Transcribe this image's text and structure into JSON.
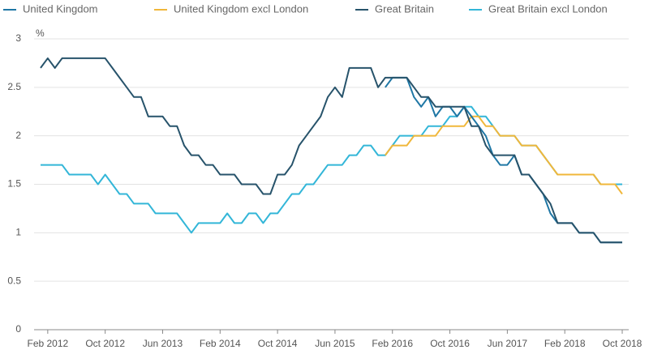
{
  "chart_data": {
    "type": "line",
    "y_label": "%",
    "categories": [
      null,
      "Feb 2012",
      null,
      null,
      null,
      null,
      null,
      null,
      null,
      "Oct 2012",
      null,
      null,
      null,
      null,
      null,
      null,
      null,
      "Jun 2013",
      null,
      null,
      null,
      null,
      null,
      null,
      null,
      "Feb 2014",
      null,
      null,
      null,
      null,
      null,
      null,
      null,
      "Oct 2014",
      null,
      null,
      null,
      null,
      null,
      null,
      null,
      "Jun 2015",
      null,
      null,
      null,
      null,
      null,
      null,
      null,
      "Feb 2016",
      null,
      null,
      null,
      null,
      null,
      null,
      null,
      "Oct 2016",
      null,
      null,
      null,
      null,
      null,
      null,
      null,
      "Jun 2017",
      null,
      null,
      null,
      null,
      null,
      null,
      null,
      "Feb 2018",
      null,
      null,
      null,
      null,
      null,
      null,
      null,
      "Oct 2018"
    ],
    "series": [
      {
        "name": "United Kingdom",
        "color": "#1f77a5",
        "values": [
          null,
          null,
          null,
          null,
          null,
          null,
          null,
          null,
          null,
          null,
          null,
          null,
          null,
          null,
          null,
          null,
          null,
          null,
          null,
          null,
          null,
          null,
          null,
          null,
          null,
          null,
          null,
          null,
          null,
          null,
          null,
          null,
          null,
          null,
          null,
          null,
          null,
          null,
          null,
          null,
          null,
          null,
          null,
          null,
          null,
          null,
          null,
          null,
          2.5,
          2.6,
          2.6,
          2.6,
          2.4,
          2.3,
          2.4,
          2.2,
          2.3,
          2.3,
          2.2,
          2.3,
          2.2,
          2.1,
          2.0,
          1.8,
          1.7,
          1.7,
          1.8,
          1.6,
          1.6,
          1.5,
          1.4,
          1.2,
          1.1,
          1.1,
          1.1,
          1.0,
          1.0,
          1.0,
          0.9,
          0.9,
          0.9,
          0.9
        ]
      },
      {
        "name": "United Kingdom excl London",
        "color": "#f0b73a",
        "values": [
          null,
          null,
          null,
          null,
          null,
          null,
          null,
          null,
          null,
          null,
          null,
          null,
          null,
          null,
          null,
          null,
          null,
          null,
          null,
          null,
          null,
          null,
          null,
          null,
          null,
          null,
          null,
          null,
          null,
          null,
          null,
          null,
          null,
          null,
          null,
          null,
          null,
          null,
          null,
          null,
          null,
          null,
          null,
          null,
          null,
          null,
          null,
          null,
          1.8,
          1.9,
          1.9,
          1.9,
          2.0,
          2.0,
          2.0,
          2.0,
          2.1,
          2.1,
          2.1,
          2.1,
          2.2,
          2.2,
          2.1,
          2.1,
          2.0,
          2.0,
          2.0,
          1.9,
          1.9,
          1.9,
          1.8,
          1.7,
          1.6,
          1.6,
          1.6,
          1.6,
          1.6,
          1.6,
          1.5,
          1.5,
          1.5,
          1.4
        ]
      },
      {
        "name": "Great Britain",
        "color": "#27536b",
        "values": [
          2.7,
          2.8,
          2.7,
          2.8,
          2.8,
          2.8,
          2.8,
          2.8,
          2.8,
          2.8,
          2.7,
          2.6,
          2.5,
          2.4,
          2.4,
          2.2,
          2.2,
          2.2,
          2.1,
          2.1,
          1.9,
          1.8,
          1.8,
          1.7,
          1.7,
          1.6,
          1.6,
          1.6,
          1.5,
          1.5,
          1.5,
          1.4,
          1.4,
          1.6,
          1.6,
          1.7,
          1.9,
          2.0,
          2.1,
          2.2,
          2.4,
          2.5,
          2.4,
          2.7,
          2.7,
          2.7,
          2.7,
          2.5,
          2.6,
          2.6,
          2.6,
          2.6,
          2.5,
          2.4,
          2.4,
          2.3,
          2.3,
          2.3,
          2.3,
          2.3,
          2.1,
          2.1,
          1.9,
          1.8,
          1.8,
          1.8,
          1.8,
          1.6,
          1.6,
          1.5,
          1.4,
          1.3,
          1.1,
          1.1,
          1.1,
          1.0,
          1.0,
          1.0,
          0.9,
          0.9,
          0.9,
          0.9
        ]
      },
      {
        "name": "Great Britain excl London",
        "color": "#33b6d8",
        "values": [
          1.7,
          1.7,
          1.7,
          1.7,
          1.6,
          1.6,
          1.6,
          1.6,
          1.5,
          1.6,
          1.5,
          1.4,
          1.4,
          1.3,
          1.3,
          1.3,
          1.2,
          1.2,
          1.2,
          1.2,
          1.1,
          1.0,
          1.1,
          1.1,
          1.1,
          1.1,
          1.2,
          1.1,
          1.1,
          1.2,
          1.2,
          1.1,
          1.2,
          1.2,
          1.3,
          1.4,
          1.4,
          1.5,
          1.5,
          1.6,
          1.7,
          1.7,
          1.7,
          1.8,
          1.8,
          1.9,
          1.9,
          1.8,
          1.8,
          1.9,
          2.0,
          2.0,
          2.0,
          2.0,
          2.1,
          2.1,
          2.1,
          2.2,
          2.2,
          2.3,
          2.3,
          2.2,
          2.2,
          2.1,
          2.0,
          2.0,
          2.0,
          1.9,
          1.9,
          1.9,
          1.8,
          1.7,
          1.6,
          1.6,
          1.6,
          1.6,
          1.6,
          1.6,
          1.5,
          1.5,
          1.5,
          1.5
        ]
      }
    ],
    "ylim": [
      0,
      3
    ],
    "yticks": [
      0,
      0.5,
      1,
      1.5,
      2,
      2.5,
      3
    ],
    "grid": true
  }
}
